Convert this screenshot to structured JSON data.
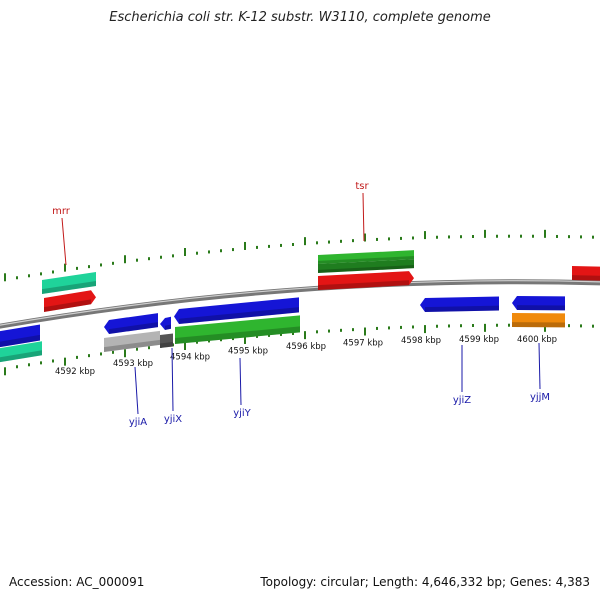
{
  "title": "Escherichia coli str. K-12 substr. W3110, complete genome",
  "footer": {
    "accession": "Accession: AC_000091",
    "topology": "Topology: circular; Length: 4,646,332 bp; Genes: 4,383"
  },
  "colors": {
    "blue": "#1515d6",
    "green": "#2fb52f",
    "dark_green": "#1f7d1f",
    "red": "#e31515",
    "teal": "#1fd39a",
    "orange": "#f08a0c",
    "gray": "#b4b4b4",
    "dark_gray": "#555555",
    "tick": "#2a7a1a",
    "backbone": "#808080"
  },
  "ticks": [
    {
      "label": "4592 kbp"
    },
    {
      "label": "4593 kbp"
    },
    {
      "label": "4594 kbp"
    },
    {
      "label": "4595 kbp"
    },
    {
      "label": "4596 kbp"
    },
    {
      "label": "4597 kbp"
    },
    {
      "label": "4598 kbp"
    },
    {
      "label": "4599 kbp"
    },
    {
      "label": "4600 kbp"
    }
  ],
  "gene_labels": [
    {
      "name": "mrr",
      "strand": "top",
      "color": "#c21a1a"
    },
    {
      "name": "tsr",
      "strand": "top",
      "color": "#c21a1a"
    },
    {
      "name": "yjiA",
      "strand": "bottom",
      "color": "#1a1aa8"
    },
    {
      "name": "yjiX",
      "strand": "bottom",
      "color": "#1a1aa8"
    },
    {
      "name": "yjiY",
      "strand": "bottom",
      "color": "#1a1aa8"
    },
    {
      "name": "yjiZ",
      "strand": "bottom",
      "color": "#1a1aa8"
    },
    {
      "name": "yjjM",
      "strand": "bottom",
      "color": "#1a1aa8"
    }
  ]
}
